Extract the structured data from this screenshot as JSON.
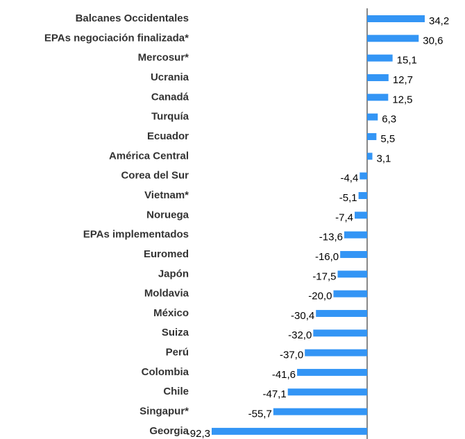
{
  "chart_data": {
    "type": "bar",
    "orientation": "horizontal",
    "color": "#3395f5",
    "categories": [
      "Balcanes Occidentales",
      "EPAs negociación finalizada*",
      "Mercosur*",
      "Ucrania",
      "Canadá",
      "Turquía",
      "Ecuador",
      "América Central",
      "Corea del Sur",
      "Vietnam*",
      "Noruega",
      "EPAs implementados",
      "Euromed",
      "Japón",
      "Moldavia",
      "México",
      "Suiza",
      "Perú",
      "Colombia",
      "Chile",
      "Singapur*",
      "Georgia"
    ],
    "values": [
      34.2,
      30.6,
      15.1,
      12.7,
      12.5,
      6.3,
      5.5,
      3.1,
      -4.4,
      -5.1,
      -7.4,
      -13.6,
      -16.0,
      -17.5,
      -20.0,
      -30.4,
      -32.0,
      -37.0,
      -41.6,
      -47.1,
      -55.7,
      -92.3
    ],
    "value_labels": [
      "34,2",
      "30,6",
      "15,1",
      "12,7",
      "12,5",
      "6,3",
      "5,5",
      "3,1",
      "-4,4",
      "-5,1",
      "-7,4",
      "-13,6",
      "-16,0",
      "-17,5",
      "-20,0",
      "-30,4",
      "-32,0",
      "-37,0",
      "-41,6",
      "-47,1",
      "-55,7",
      "-92,3"
    ]
  }
}
